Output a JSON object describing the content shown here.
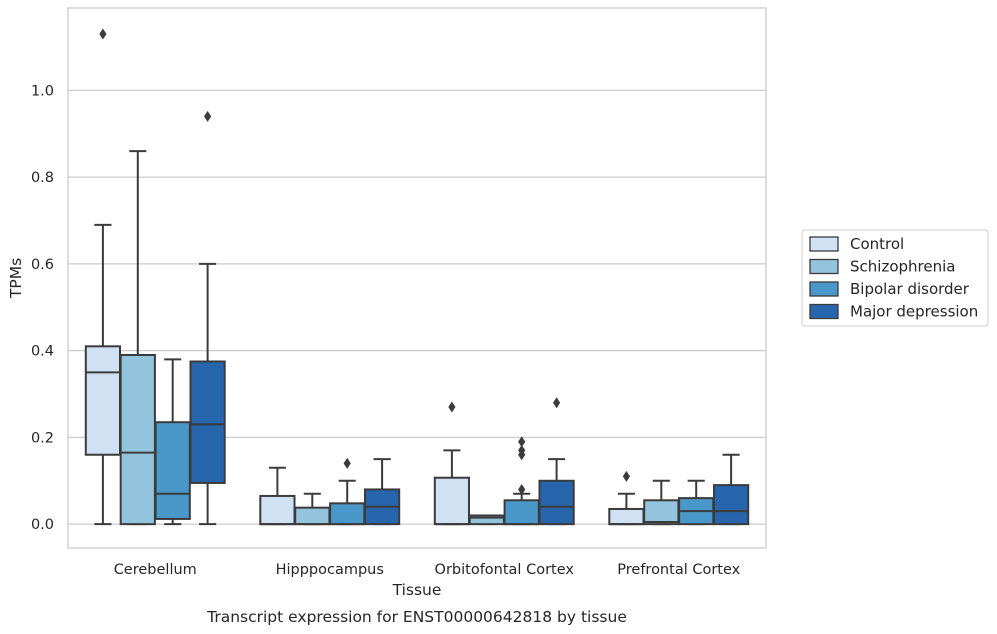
{
  "chart_data": {
    "type": "box",
    "caption": "Transcript expression for ENST00000642818 by tissue",
    "xlabel": "Tissue",
    "ylabel": "TPMs",
    "ylim": [
      -0.055,
      1.19
    ],
    "yticks": [
      0.0,
      0.2,
      0.4,
      0.6,
      0.8,
      1.0
    ],
    "ytick_labels": [
      "0.0",
      "0.2",
      "0.4",
      "0.6",
      "0.8",
      "1.0"
    ],
    "grid": "horizontal",
    "legend_position": "right",
    "categories": [
      "Cerebellum",
      "Hipppocampus",
      "Orbitofontal Cortex",
      "Prefrontal Cortex"
    ],
    "series": [
      {
        "name": "Control",
        "color": "#cfe1f2",
        "boxes": [
          {
            "whislo": 0.0,
            "q1": 0.16,
            "med": 0.35,
            "q3": 0.41,
            "whishi": 0.69,
            "fliers": [
              1.13
            ]
          },
          {
            "whislo": 0.0,
            "q1": 0.0,
            "med": 0.0,
            "q3": 0.065,
            "whishi": 0.13,
            "fliers": []
          },
          {
            "whislo": 0.0,
            "q1": 0.0,
            "med": 0.0,
            "q3": 0.107,
            "whishi": 0.17,
            "fliers": [
              0.27
            ]
          },
          {
            "whislo": 0.0,
            "q1": 0.0,
            "med": 0.0,
            "q3": 0.035,
            "whishi": 0.07,
            "fliers": [
              0.11
            ]
          }
        ]
      },
      {
        "name": "Schizophrenia",
        "color": "#93c4de",
        "boxes": [
          {
            "whislo": 0.0,
            "q1": 0.0,
            "med": 0.165,
            "q3": 0.39,
            "whishi": 0.86,
            "fliers": []
          },
          {
            "whislo": 0.0,
            "q1": 0.0,
            "med": 0.0,
            "q3": 0.038,
            "whishi": 0.07,
            "fliers": []
          },
          {
            "whislo": 0.0,
            "q1": 0.0,
            "med": 0.015,
            "q3": 0.02,
            "whishi": 0.02,
            "fliers": []
          },
          {
            "whislo": 0.0,
            "q1": 0.0,
            "med": 0.005,
            "q3": 0.055,
            "whishi": 0.1,
            "fliers": []
          }
        ]
      },
      {
        "name": "Bipolar disorder",
        "color": "#4a98c9",
        "boxes": [
          {
            "whislo": 0.0,
            "q1": 0.012,
            "med": 0.07,
            "q3": 0.235,
            "whishi": 0.38,
            "fliers": []
          },
          {
            "whislo": 0.0,
            "q1": 0.0,
            "med": 0.0,
            "q3": 0.048,
            "whishi": 0.1,
            "fliers": [
              0.14
            ]
          },
          {
            "whislo": 0.0,
            "q1": 0.0,
            "med": 0.0,
            "q3": 0.055,
            "whishi": 0.07,
            "fliers": [
              0.16,
              0.19,
              0.17,
              0.08
            ]
          },
          {
            "whislo": 0.0,
            "q1": 0.0,
            "med": 0.03,
            "q3": 0.06,
            "whishi": 0.1,
            "fliers": []
          }
        ]
      },
      {
        "name": "Major depression",
        "color": "#2766ac",
        "boxes": [
          {
            "whislo": 0.0,
            "q1": 0.095,
            "med": 0.23,
            "q3": 0.375,
            "whishi": 0.6,
            "fliers": [
              0.94
            ]
          },
          {
            "whislo": 0.0,
            "q1": 0.0,
            "med": 0.04,
            "q3": 0.08,
            "whishi": 0.15,
            "fliers": []
          },
          {
            "whislo": 0.0,
            "q1": 0.0,
            "med": 0.04,
            "q3": 0.1,
            "whishi": 0.15,
            "fliers": [
              0.28
            ]
          },
          {
            "whislo": 0.0,
            "q1": 0.0,
            "med": 0.03,
            "q3": 0.09,
            "whishi": 0.16,
            "fliers": []
          }
        ]
      }
    ]
  }
}
